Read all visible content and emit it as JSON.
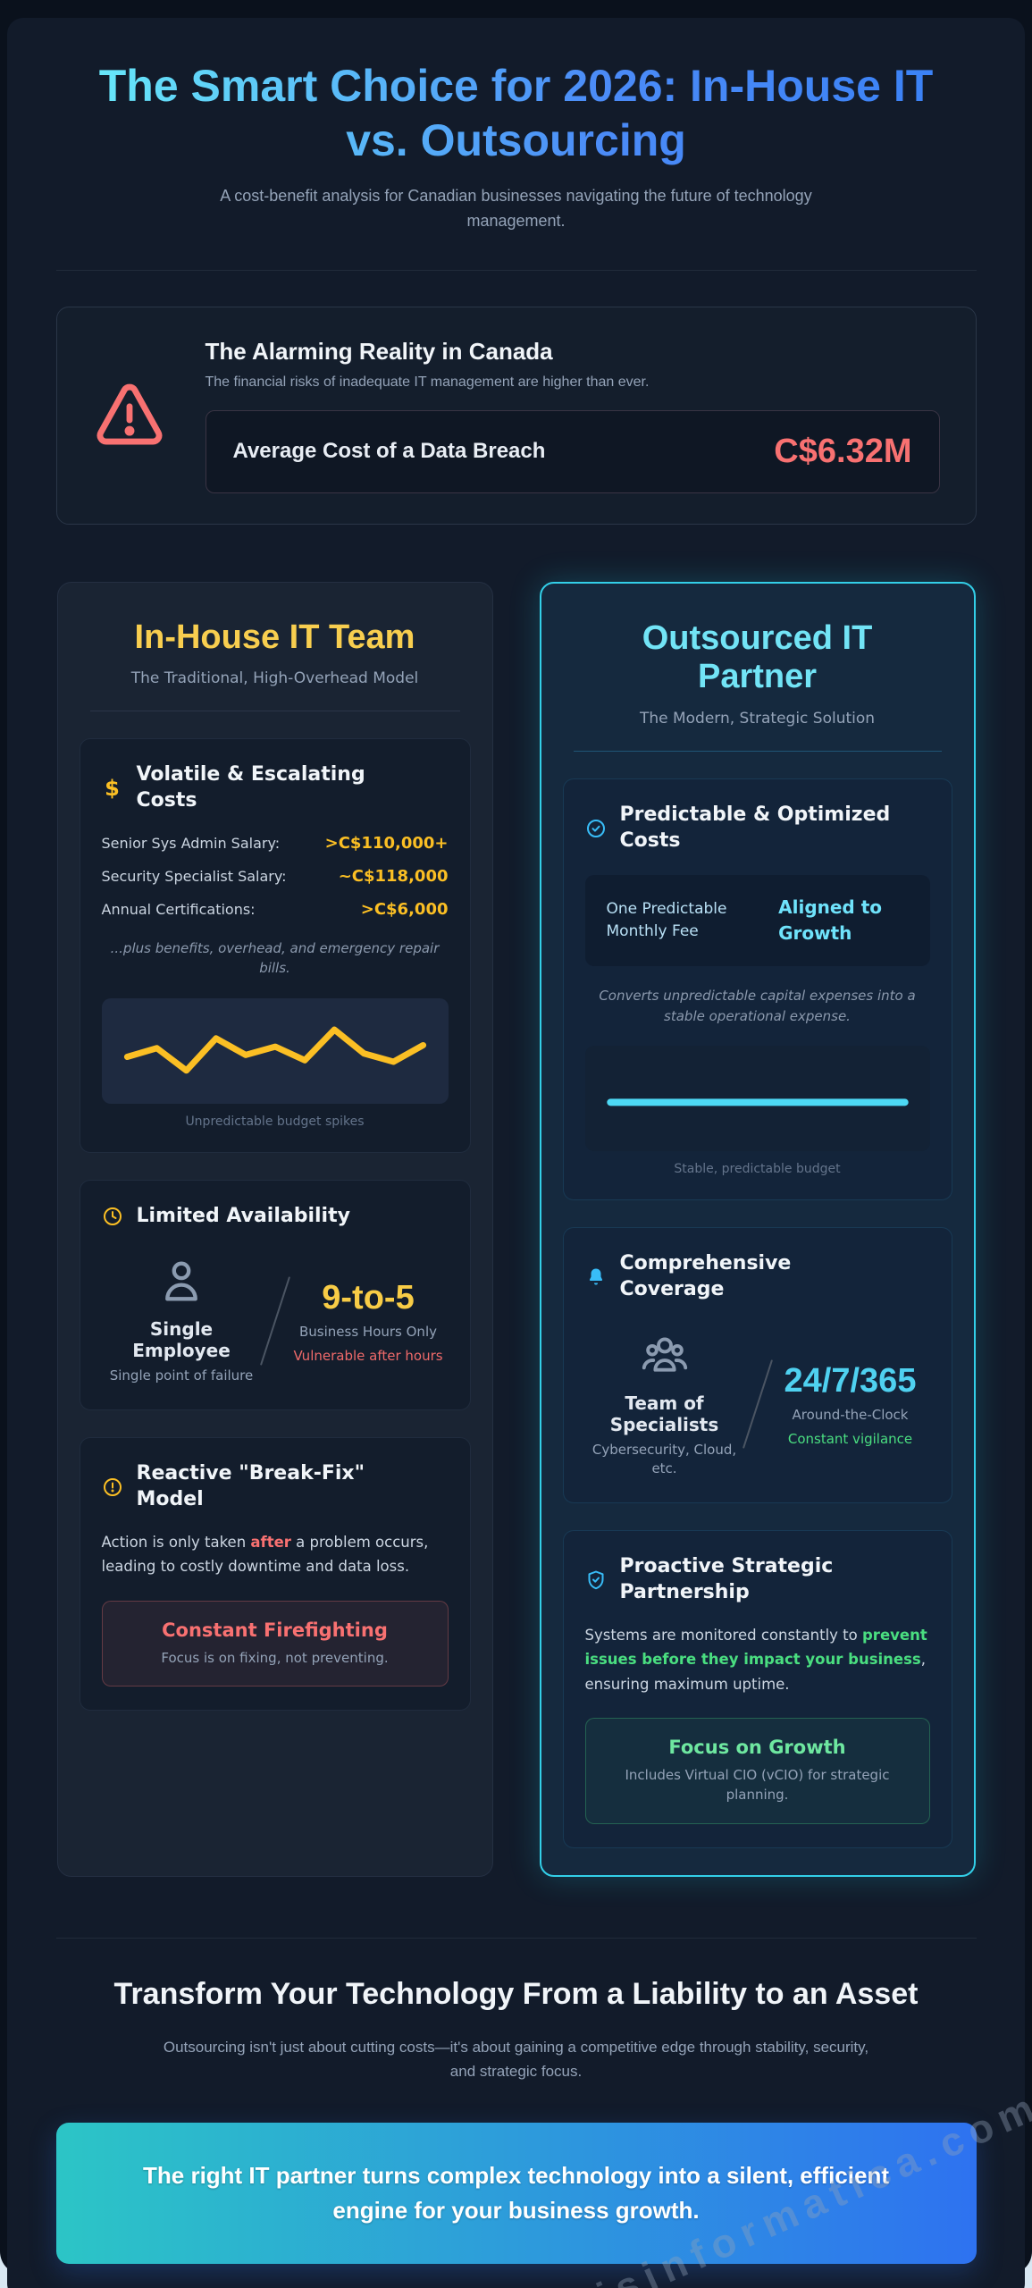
{
  "header": {
    "title": "The Smart Choice for 2026: In-House IT vs. Outsourcing",
    "subtitle": "A cost-benefit analysis for Canadian businesses navigating the future of technology management."
  },
  "alert": {
    "title": "The Alarming Reality in Canada",
    "subtitle": "The financial risks of inadequate IT management are higher than ever.",
    "stat_label": "Average Cost of a Data Breach",
    "stat_value": "C$6.32M"
  },
  "inhouse": {
    "title": "In-House IT Team",
    "subtitle": "The Traditional, High-Overhead Model",
    "costs": {
      "heading": "Volatile & Escalating Costs",
      "rows": [
        {
          "label": "Senior Sys Admin Salary:",
          "value": ">C$110,000+"
        },
        {
          "label": "Security Specialist Salary:",
          "value": "~C$118,000"
        },
        {
          "label": "Annual Certifications:",
          "value": ">C$6,000"
        }
      ],
      "note": "...plus benefits, overhead, and emergency repair bills."
    },
    "availability": {
      "heading": "Limited Availability",
      "left_title": "Single Employee",
      "left_sub": "Single point of failure",
      "right_value": "9-to-5",
      "right_sub": "Business Hours Only",
      "right_warn": "Vulnerable after hours"
    },
    "reactive": {
      "heading": "Reactive \"Break-Fix\" Model",
      "body_pre": "Action is only taken ",
      "body_em": "after",
      "body_post": " a problem occurs, leading to costly downtime and data loss.",
      "box_title": "Constant Firefighting",
      "box_sub": "Focus is on fixing, not preventing."
    }
  },
  "outsourced": {
    "title": "Outsourced IT Partner",
    "subtitle": "The Modern, Strategic Solution",
    "costs": {
      "heading": "Predictable & Optimized Costs",
      "fee_label": "One Predictable Monthly Fee",
      "fee_value": "Aligned to Growth",
      "note": "Converts unpredictable capital expenses into a stable operational expense."
    },
    "coverage": {
      "heading": "Comprehensive Coverage",
      "left_title": "Team of Specialists",
      "left_sub": "Cybersecurity, Cloud, etc.",
      "right_value": "24/7/365",
      "right_sub": "Around-the-Clock",
      "right_note": "Constant vigilance"
    },
    "proactive": {
      "heading": "Proactive Strategic Partnership",
      "body_pre": "Systems are monitored constantly to ",
      "body_em": "prevent issues before they impact your business",
      "body_post": ", ensuring maximum uptime.",
      "box_title": "Focus on Growth",
      "box_sub": "Includes Virtual CIO (vCIO) for strategic planning."
    }
  },
  "footer": {
    "title": "Transform Your Technology From a Liability to an Asset",
    "subtitle": "Outsourcing isn't just about cutting costs—it's about gaining a competitive edge through stability, security, and strategic focus.",
    "banner": "The right IT partner turns complex technology into a silent, efficient engine for your business growth."
  },
  "watermark": "reisinformatica.com",
  "colors": {
    "accent_yellow": "#fbbf24",
    "accent_cyan": "#38bdf8",
    "accent_red": "#f87171",
    "accent_green": "#4ade80",
    "title_gradient_start": "#67e8f9",
    "title_gradient_end": "#3b82f6",
    "banner_gradient_start": "#2cc5c6",
    "banner_gradient_end": "#2e72f0",
    "card_bg_dark": "#121b2a"
  },
  "chart_data": [
    {
      "type": "line",
      "name": "inhouse-budget",
      "x": [
        0,
        1,
        2,
        3,
        4,
        5,
        6,
        7,
        8,
        9,
        10
      ],
      "values": [
        45,
        58,
        25,
        72,
        48,
        60,
        40,
        85,
        50,
        38,
        62
      ],
      "caption": "Unpredictable budget spikes",
      "color": "#fbbf24"
    },
    {
      "type": "line",
      "name": "outsourced-budget",
      "x": [
        0,
        1
      ],
      "values": [
        48,
        48
      ],
      "caption": "Stable, predictable budget",
      "color": "#4dd9f5"
    }
  ]
}
